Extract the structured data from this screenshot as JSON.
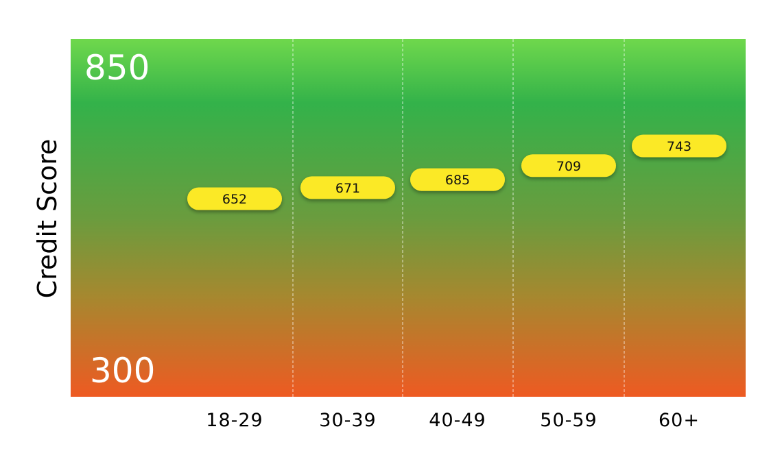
{
  "chart_data": {
    "type": "scatter",
    "title": "",
    "xlabel": "",
    "ylabel": "Credit Score",
    "ylim": [
      300,
      850
    ],
    "y_max_label": "850",
    "y_min_label": "300",
    "categories": [
      "18-29",
      "30-39",
      "40-49",
      "50-59",
      "60+"
    ],
    "values": [
      652,
      671,
      685,
      709,
      743
    ],
    "value_labels": [
      "652",
      "671",
      "685",
      "709",
      "743"
    ],
    "grid": "vertical dashed separators",
    "colors": {
      "gradient_top": "#6fd84c",
      "gradient_upper": "#33b24a",
      "gradient_mid": "#6a9c3e",
      "gradient_lower": "#a6882f",
      "gradient_bottom": "#ee5a22",
      "marker": "#fbe925",
      "grid": "#ffffff"
    }
  }
}
